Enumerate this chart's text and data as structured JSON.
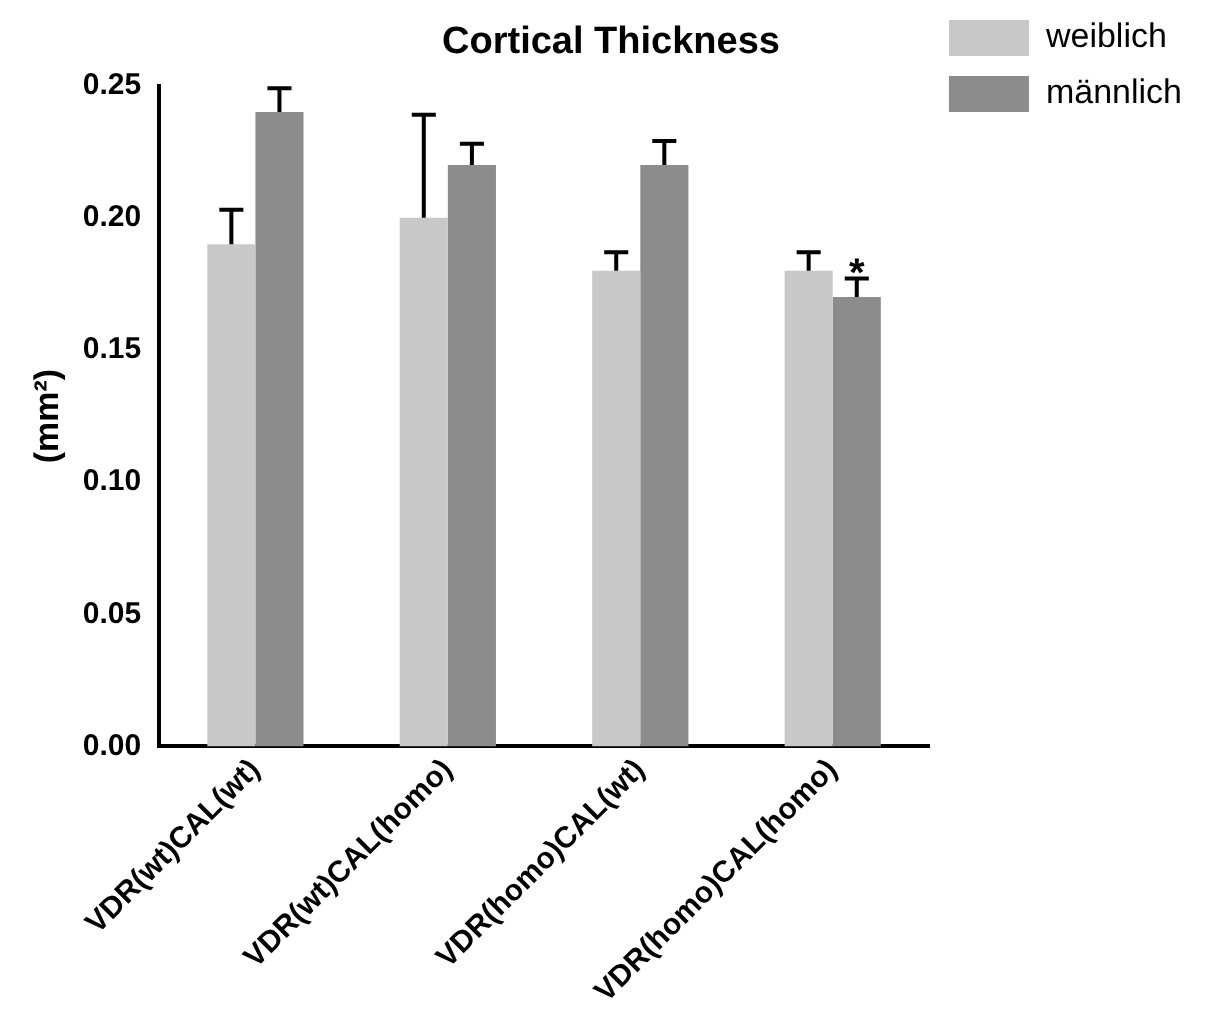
{
  "chart_data": {
    "type": "bar",
    "title": "Cortical Thickness",
    "ylabel": "(mm²)",
    "categories": [
      "VDR(wt)CAL(wt)",
      "VDR(wt)CAL(homo)",
      "VDR(homo)CAL(wt)",
      "VDR(homo)CAL(homo)"
    ],
    "series": [
      {
        "name": "weiblich",
        "color": "#c8c8c8",
        "values": [
          0.19,
          0.2,
          0.18,
          0.18
        ],
        "errors": [
          [
            0.19,
            0.203
          ],
          [
            0.2,
            0.239
          ],
          [
            0.18,
            0.187
          ],
          [
            0.18,
            0.187
          ]
        ]
      },
      {
        "name": "männlich",
        "color": "#8c8c8c",
        "values": [
          0.24,
          0.22,
          0.22,
          0.17
        ],
        "errors": [
          [
            0.24,
            0.249
          ],
          [
            0.22,
            0.228
          ],
          [
            0.22,
            0.229
          ],
          [
            0.17,
            0.177
          ]
        ]
      }
    ],
    "ylim": [
      0,
      0.25
    ],
    "yticks": [
      {
        "value": 0,
        "label": "0.00"
      },
      {
        "value": 0.05,
        "label": "0.05"
      },
      {
        "value": 0.1,
        "label": "0.10"
      },
      {
        "value": 0.15,
        "label": "0.15"
      },
      {
        "value": 0.2,
        "label": "0.20"
      },
      {
        "value": 0.25,
        "label": "0.25"
      }
    ],
    "grid": false,
    "legend": "top right",
    "annotations": [
      {
        "text": "*",
        "x": "VDR(homo)CAL(homo)",
        "y": 0.177
      }
    ]
  }
}
